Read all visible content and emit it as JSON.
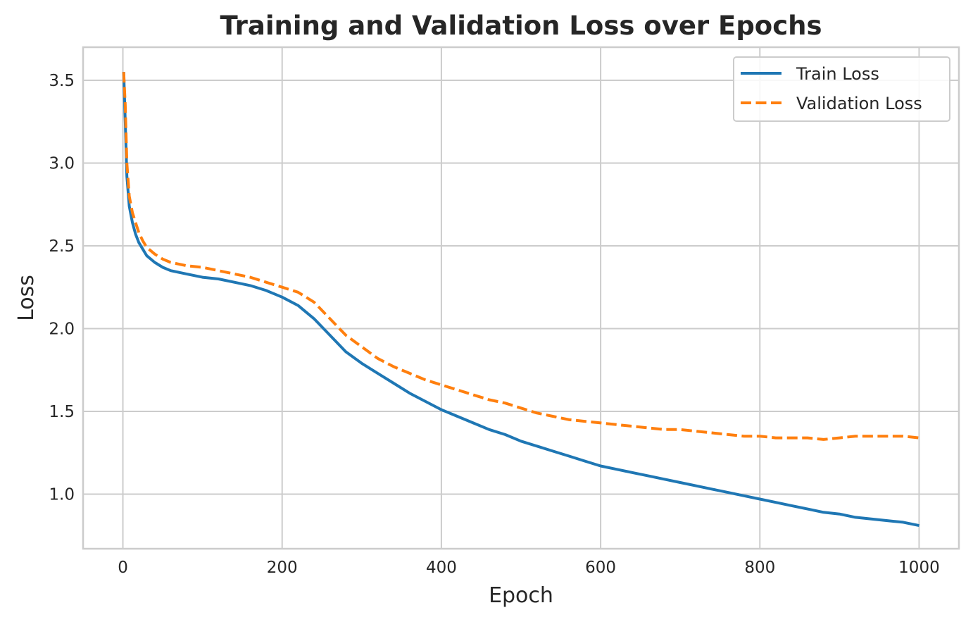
{
  "chart_data": {
    "type": "line",
    "title": "Training and Validation Loss over Epochs",
    "xlabel": "Epoch",
    "ylabel": "Loss",
    "xlim": [
      -50,
      1050
    ],
    "ylim": [
      0.67,
      3.7
    ],
    "xticks": [
      0,
      200,
      400,
      600,
      800,
      1000
    ],
    "xtick_labels": [
      "0",
      "200",
      "400",
      "600",
      "800",
      "1000"
    ],
    "yticks": [
      1.0,
      1.5,
      2.0,
      2.5,
      3.0,
      3.5
    ],
    "ytick_labels": [
      "1.0",
      "1.5",
      "2.0",
      "2.5",
      "3.0",
      "3.5"
    ],
    "grid": true,
    "legend_position": "top-right",
    "series": [
      {
        "name": "Train Loss",
        "color": "#1f77b4",
        "style": "solid",
        "x": [
          1,
          3,
          5,
          8,
          12,
          16,
          20,
          25,
          30,
          40,
          50,
          60,
          80,
          100,
          120,
          140,
          160,
          180,
          200,
          220,
          240,
          260,
          280,
          300,
          320,
          340,
          360,
          380,
          400,
          420,
          440,
          460,
          480,
          500,
          520,
          540,
          560,
          580,
          600,
          620,
          640,
          660,
          680,
          700,
          720,
          740,
          760,
          780,
          800,
          820,
          840,
          860,
          880,
          900,
          920,
          940,
          960,
          980,
          1000
        ],
        "y": [
          3.55,
          3.25,
          2.92,
          2.74,
          2.64,
          2.57,
          2.52,
          2.48,
          2.44,
          2.4,
          2.37,
          2.35,
          2.33,
          2.31,
          2.3,
          2.28,
          2.26,
          2.23,
          2.19,
          2.14,
          2.06,
          1.96,
          1.86,
          1.79,
          1.73,
          1.67,
          1.61,
          1.56,
          1.51,
          1.47,
          1.43,
          1.39,
          1.36,
          1.32,
          1.29,
          1.26,
          1.23,
          1.2,
          1.17,
          1.15,
          1.13,
          1.11,
          1.09,
          1.07,
          1.05,
          1.03,
          1.01,
          0.99,
          0.97,
          0.95,
          0.93,
          0.91,
          0.89,
          0.88,
          0.86,
          0.85,
          0.84,
          0.83,
          0.81
        ]
      },
      {
        "name": "Validation Loss",
        "color": "#ff7f0e",
        "style": "dashed",
        "x": [
          1,
          3,
          5,
          8,
          12,
          16,
          20,
          25,
          30,
          40,
          50,
          60,
          80,
          100,
          120,
          140,
          160,
          180,
          200,
          220,
          240,
          260,
          280,
          300,
          320,
          340,
          360,
          380,
          400,
          420,
          440,
          460,
          480,
          500,
          520,
          540,
          560,
          580,
          600,
          620,
          640,
          660,
          680,
          700,
          720,
          740,
          760,
          780,
          800,
          820,
          840,
          860,
          880,
          900,
          920,
          940,
          960,
          980,
          1000
        ],
        "y": [
          3.55,
          3.35,
          3.0,
          2.8,
          2.7,
          2.64,
          2.58,
          2.53,
          2.49,
          2.45,
          2.42,
          2.4,
          2.38,
          2.37,
          2.35,
          2.33,
          2.31,
          2.28,
          2.25,
          2.22,
          2.16,
          2.06,
          1.96,
          1.89,
          1.82,
          1.77,
          1.73,
          1.69,
          1.66,
          1.63,
          1.6,
          1.57,
          1.55,
          1.52,
          1.49,
          1.47,
          1.45,
          1.44,
          1.43,
          1.42,
          1.41,
          1.4,
          1.39,
          1.39,
          1.38,
          1.37,
          1.36,
          1.35,
          1.35,
          1.34,
          1.34,
          1.34,
          1.33,
          1.34,
          1.35,
          1.35,
          1.35,
          1.35,
          1.34
        ]
      }
    ]
  }
}
